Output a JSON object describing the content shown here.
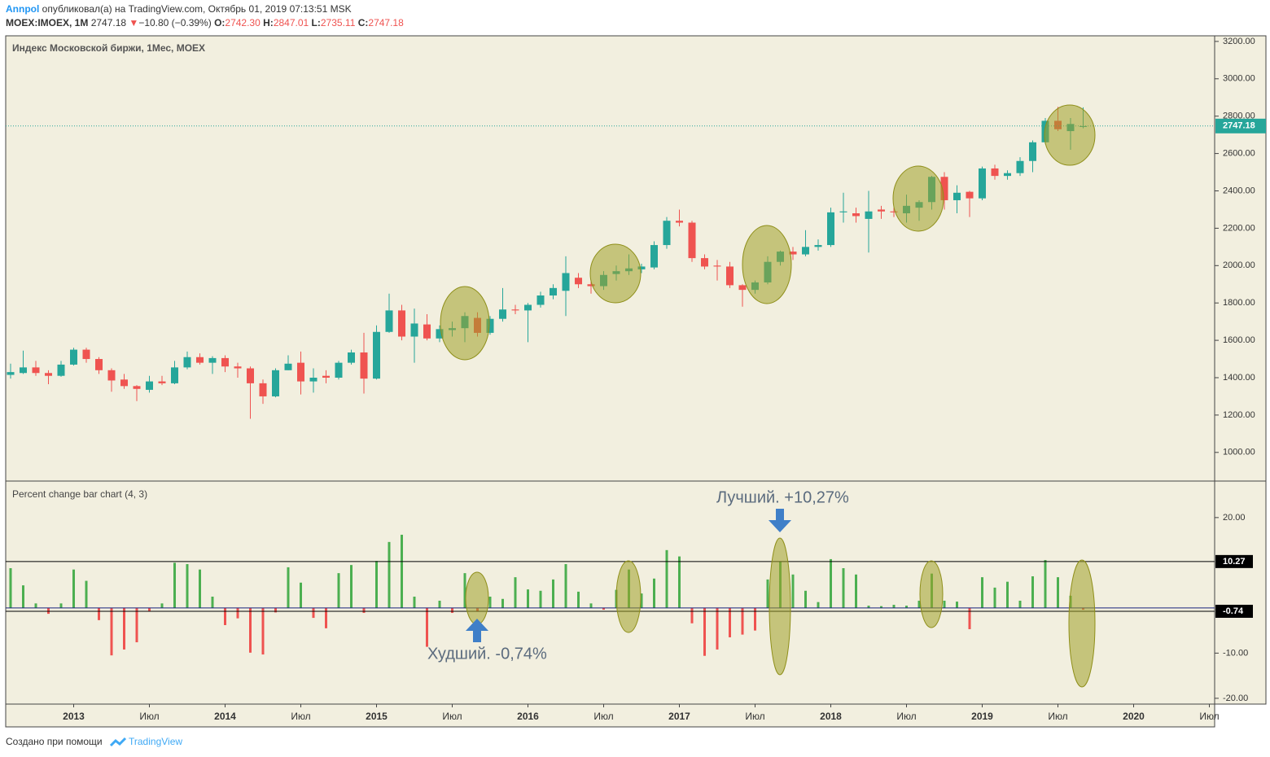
{
  "header": {
    "author": "Annpol",
    "published": "опубликовал(а) на TradingView.com, Октябрь 01, 2019 07:13:51 MSK",
    "symbol": "MOEX:IMOEX, 1M",
    "last": "2747.18",
    "arrow": "▼",
    "change": "−10.80 (−0.39%)",
    "ohlc": [
      {
        "label": "O:",
        "value": "2742.30"
      },
      {
        "label": "H:",
        "value": "2847.01"
      },
      {
        "label": "L:",
        "value": "2735.11"
      },
      {
        "label": "C:",
        "value": "2747.18"
      }
    ]
  },
  "chart_data": [
    {
      "type": "candlestick",
      "title": "Индекс Московской биржи, 1Мес, MOEX",
      "colors": {
        "up": "#26a69a",
        "down": "#ef5350"
      },
      "x": [
        "2012-08",
        "2012-09",
        "2012-10",
        "2012-11",
        "2012-12",
        "2013-01",
        "2013-02",
        "2013-03",
        "2013-04",
        "2013-05",
        "2013-06",
        "2013-07",
        "2013-08",
        "2013-09",
        "2013-10",
        "2013-11",
        "2013-12",
        "2014-01",
        "2014-02",
        "2014-03",
        "2014-04",
        "2014-05",
        "2014-06",
        "2014-07",
        "2014-08",
        "2014-09",
        "2014-10",
        "2014-11",
        "2014-12",
        "2015-01",
        "2015-02",
        "2015-03",
        "2015-04",
        "2015-05",
        "2015-06",
        "2015-07",
        "2015-08",
        "2015-09",
        "2015-10",
        "2015-11",
        "2015-12",
        "2016-01",
        "2016-02",
        "2016-03",
        "2016-04",
        "2016-05",
        "2016-06",
        "2016-07",
        "2016-08",
        "2016-09",
        "2016-10",
        "2016-11",
        "2016-12",
        "2017-01",
        "2017-02",
        "2017-03",
        "2017-04",
        "2017-05",
        "2017-06",
        "2017-07",
        "2017-08",
        "2017-09",
        "2017-10",
        "2017-11",
        "2017-12",
        "2018-01",
        "2018-02",
        "2018-03",
        "2018-04",
        "2018-05",
        "2018-06",
        "2018-07",
        "2018-08",
        "2018-09",
        "2018-10",
        "2018-11",
        "2018-12",
        "2019-01",
        "2019-02",
        "2019-03",
        "2019-04",
        "2019-05",
        "2019-06",
        "2019-07",
        "2019-08",
        "2019-09"
      ],
      "open": [
        1415,
        1425,
        1455,
        1425,
        1410,
        1470,
        1550,
        1500,
        1440,
        1390,
        1355,
        1335,
        1380,
        1370,
        1455,
        1510,
        1480,
        1505,
        1460,
        1450,
        1370,
        1300,
        1440,
        1480,
        1380,
        1410,
        1400,
        1480,
        1535,
        1395,
        1645,
        1760,
        1620,
        1685,
        1610,
        1655,
        1665,
        1720,
        1640,
        1715,
        1765,
        1760,
        1790,
        1840,
        1865,
        1935,
        1900,
        1890,
        1955,
        1970,
        1980,
        1990,
        2110,
        2240,
        2230,
        2040,
        2000,
        1995,
        1895,
        1870,
        1910,
        2020,
        2075,
        2060,
        2100,
        2110,
        2285,
        2280,
        2250,
        2300,
        2290,
        2280,
        2310,
        2340,
        2475,
        2350,
        2395,
        2360,
        2520,
        2480,
        2495,
        2560,
        2660,
        2775,
        2720,
        2742.3
      ],
      "high": [
        1475,
        1545,
        1490,
        1440,
        1490,
        1560,
        1560,
        1510,
        1450,
        1420,
        1360,
        1410,
        1410,
        1490,
        1540,
        1530,
        1515,
        1520,
        1480,
        1460,
        1390,
        1450,
        1520,
        1540,
        1450,
        1440,
        1490,
        1550,
        1640,
        1680,
        1850,
        1790,
        1770,
        1740,
        1680,
        1700,
        1750,
        1750,
        1730,
        1880,
        1790,
        1800,
        1860,
        1900,
        2050,
        1960,
        1920,
        1970,
        2000,
        2060,
        2010,
        2130,
        2260,
        2300,
        2240,
        2060,
        2030,
        2020,
        1900,
        1920,
        2050,
        2080,
        2100,
        2190,
        2140,
        2310,
        2390,
        2310,
        2400,
        2320,
        2310,
        2380,
        2350,
        2480,
        2500,
        2430,
        2400,
        2530,
        2540,
        2510,
        2580,
        2670,
        2790,
        2850,
        2790,
        2847.01
      ],
      "low": [
        1395,
        1420,
        1410,
        1365,
        1405,
        1465,
        1480,
        1420,
        1325,
        1340,
        1275,
        1320,
        1360,
        1365,
        1445,
        1470,
        1420,
        1430,
        1400,
        1180,
        1260,
        1295,
        1440,
        1310,
        1320,
        1370,
        1390,
        1470,
        1315,
        1390,
        1640,
        1600,
        1480,
        1600,
        1590,
        1620,
        1590,
        1620,
        1630,
        1700,
        1740,
        1590,
        1775,
        1820,
        1730,
        1880,
        1850,
        1870,
        1920,
        1950,
        1960,
        1980,
        2090,
        2210,
        2020,
        1980,
        1920,
        1880,
        1780,
        1850,
        1900,
        2000,
        2030,
        2050,
        2080,
        2100,
        2230,
        2230,
        2070,
        2250,
        2260,
        2230,
        2240,
        2300,
        2300,
        2280,
        2260,
        2350,
        2460,
        2460,
        2480,
        2500,
        2650,
        2720,
        2620,
        2735.11
      ],
      "close": [
        1430,
        1455,
        1425,
        1410,
        1470,
        1550,
        1500,
        1440,
        1385,
        1355,
        1340,
        1380,
        1370,
        1455,
        1510,
        1480,
        1505,
        1460,
        1450,
        1370,
        1300,
        1440,
        1475,
        1380,
        1400,
        1400,
        1480,
        1535,
        1395,
        1645,
        1760,
        1620,
        1690,
        1610,
        1660,
        1665,
        1730,
        1640,
        1715,
        1765,
        1760,
        1790,
        1840,
        1880,
        1960,
        1900,
        1890,
        1950,
        1970,
        1985,
        1995,
        2110,
        2240,
        2230,
        2040,
        1995,
        1995,
        1895,
        1870,
        1910,
        2020,
        2075,
        2060,
        2100,
        2110,
        2285,
        2290,
        2265,
        2290,
        2290,
        2285,
        2320,
        2340,
        2475,
        2350,
        2390,
        2360,
        2520,
        2480,
        2495,
        2560,
        2660,
        2775,
        2730,
        2757.98,
        2747.18
      ],
      "ylim": [
        851,
        3230
      ],
      "yticks": [
        {
          "value": 1000,
          "label": "1000.00"
        },
        {
          "value": 1200,
          "label": "1200.00"
        },
        {
          "value": 1400,
          "label": "1400.00"
        },
        {
          "value": 1600,
          "label": "1600.00"
        },
        {
          "value": 1800,
          "label": "1800.00"
        },
        {
          "value": 2000,
          "label": "2000.00"
        },
        {
          "value": 2200,
          "label": "2200.00"
        },
        {
          "value": 2400,
          "label": "2400.00"
        },
        {
          "value": 2600,
          "label": "2600.00"
        },
        {
          "value": 2800,
          "label": "2800.00"
        },
        {
          "value": 3000,
          "label": "3000.00"
        },
        {
          "value": 3200,
          "label": "3200.00"
        }
      ],
      "xticks": [
        {
          "value": "2013-01",
          "label": "2013"
        },
        {
          "value": "2013-07",
          "label": "Июл"
        },
        {
          "value": "2014-01",
          "label": "2014"
        },
        {
          "value": "2014-07",
          "label": "Июл"
        },
        {
          "value": "2015-01",
          "label": "2015"
        },
        {
          "value": "2015-07",
          "label": "Июл"
        },
        {
          "value": "2016-01",
          "label": "2016"
        },
        {
          "value": "2016-07",
          "label": "Июл"
        },
        {
          "value": "2017-01",
          "label": "2017"
        },
        {
          "value": "2017-07",
          "label": "Июл"
        },
        {
          "value": "2018-01",
          "label": "2018"
        },
        {
          "value": "2018-07",
          "label": "Июл"
        },
        {
          "value": "2019-01",
          "label": "2019"
        },
        {
          "value": "2019-07",
          "label": "Июл"
        },
        {
          "value": "2020-01",
          "label": "2020"
        },
        {
          "value": "2020-07",
          "label": "Июл"
        }
      ],
      "grid": false
    },
    {
      "type": "bar",
      "title": "Percent change bar chart (4, 3)",
      "colors": {
        "up": "#4caf50",
        "down": "#ef5350"
      },
      "values": [
        8.8,
        5,
        1,
        -1.3,
        1,
        8.5,
        6,
        -2.7,
        -10.5,
        -9.2,
        -7.6,
        -0.7,
        1,
        10,
        9.7,
        8.5,
        2.5,
        -3.8,
        -2.3,
        -9.9,
        -10.3,
        -1,
        9,
        5.6,
        -2.2,
        -4.5,
        7.7,
        9.5,
        -1.1,
        10.4,
        14.6,
        16.2,
        2.5,
        -8.6,
        1.6,
        -1.1,
        7.7,
        -0.74,
        2.5,
        2,
        6.8,
        4.1,
        3.8,
        6.3,
        9.7,
        3.6,
        1,
        -0.4,
        4,
        8.5,
        3.2,
        6.5,
        12.8,
        11.4,
        -3.4,
        -10.6,
        -9.2,
        -6.5,
        -5.9,
        -5,
        6.3,
        10.27,
        7.4,
        3.8,
        1.3,
        10.8,
        8.8,
        7.4,
        0.5,
        0.4,
        0.7,
        0.5,
        1.6,
        7.6,
        1.6,
        1.4,
        -4.7,
        6.8,
        4.5,
        5.8,
        1.6,
        7,
        10.6,
        6.8,
        2.7,
        -0.4
      ],
      "ylim": [
        -21.1,
        27.9
      ],
      "yticks": [
        {
          "value": 20,
          "label": "20.00"
        },
        {
          "value": -10,
          "label": "-10.00"
        },
        {
          "value": -20,
          "label": "-20.00"
        }
      ],
      "levels": [
        10.27,
        -0.74
      ],
      "annotations": [
        "Лучший. +10,27%",
        "Худший. -0,74%"
      ],
      "grid": false
    }
  ],
  "footer": {
    "text": "Создано при помощи",
    "brand": "TradingView"
  }
}
